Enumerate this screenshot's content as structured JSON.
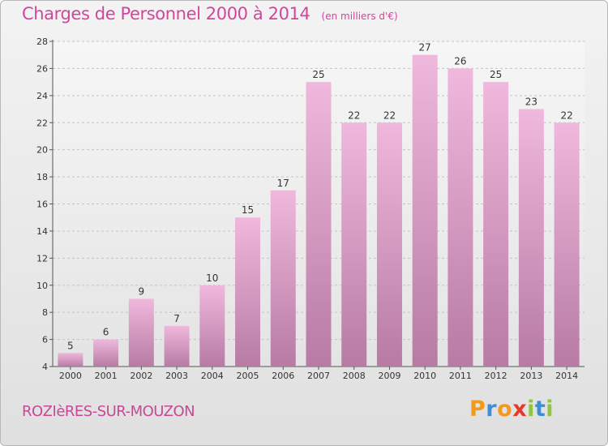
{
  "header": {
    "title": "Charges de Personnel 2000 à 2014",
    "subtitle": "(en milliers d'€)"
  },
  "footer": {
    "city": "ROZIèRES-SUR-MOUZON",
    "logo": "Proxiti"
  },
  "colors": {
    "bar_light": "#f0b8dc",
    "bar_dark": "#b77ba4",
    "title": "#d0479a",
    "axis": "#555555",
    "logo_letters": [
      "#f29a1e",
      "#3a8fd6",
      "#f29a1e",
      "#e53a2b",
      "#8fc63e",
      "#3a8fd6",
      "#8fc63e"
    ]
  },
  "chart_data": {
    "type": "bar",
    "title": "Charges de Personnel 2000 à 2014",
    "subtitle": "(en milliers d'€)",
    "categories": [
      "2000",
      "2001",
      "2002",
      "2003",
      "2004",
      "2005",
      "2006",
      "2007",
      "2008",
      "2009",
      "2010",
      "2011",
      "2012",
      "2013",
      "2014"
    ],
    "values": [
      5,
      6,
      9,
      7,
      10,
      15,
      17,
      25,
      22,
      22,
      27,
      26,
      25,
      23,
      22
    ],
    "ylim": [
      4,
      28
    ],
    "yticks": [
      4,
      6,
      8,
      10,
      12,
      14,
      16,
      18,
      20,
      22,
      24,
      26,
      28
    ],
    "grid": true,
    "data_labels": true
  }
}
